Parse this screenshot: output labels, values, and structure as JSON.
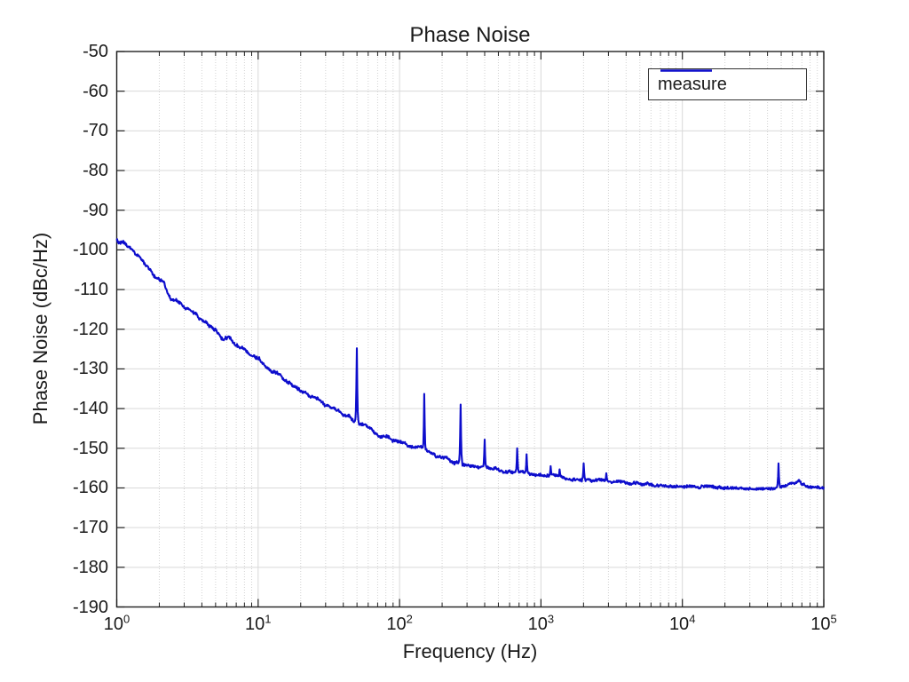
{
  "figure": {
    "background": "#ffffff",
    "text_color": "#1a1a1a"
  },
  "chart_data": {
    "type": "line",
    "title": "Phase Noise",
    "xlabel": "Frequency (Hz)",
    "ylabel": "Phase Noise (dBc/Hz)",
    "x_scale": "log",
    "xlim": [
      1,
      100000
    ],
    "ylim": [
      -190,
      -50
    ],
    "y_ticks": [
      -190,
      -180,
      -170,
      -160,
      -150,
      -140,
      -130,
      -120,
      -110,
      -100,
      -90,
      -80,
      -70,
      -60,
      -50
    ],
    "x_tick_base": "10",
    "x_tick_exponents": [
      0,
      1,
      2,
      3,
      4,
      5
    ],
    "grid": true,
    "minor_grid": true,
    "colors": {
      "grid_major": "#d9d9d9",
      "grid_minor": "#d2d2d2",
      "axis": "#212121",
      "line": "#0d0dcc"
    },
    "legend": {
      "position": "northeast",
      "entries": [
        {
          "label": "measure",
          "color": "#0d0dcc"
        }
      ]
    },
    "series": [
      {
        "name": "measure",
        "color": "#0d0dcc",
        "baseline_points": [
          [
            1,
            -97.5
          ],
          [
            1.1,
            -98.3
          ],
          [
            1.3,
            -100.5
          ],
          [
            1.5,
            -102.5
          ],
          [
            1.7,
            -105
          ],
          [
            1.85,
            -106.8
          ],
          [
            2,
            -107.3
          ],
          [
            2.15,
            -107.8
          ],
          [
            2.3,
            -110.5
          ],
          [
            2.45,
            -112.3
          ],
          [
            2.6,
            -112.8
          ],
          [
            2.8,
            -113.4
          ],
          [
            3,
            -114.6
          ],
          [
            3.3,
            -115.6
          ],
          [
            3.6,
            -116.2
          ],
          [
            3.9,
            -117.6
          ],
          [
            4.2,
            -118.2
          ],
          [
            4.6,
            -119.4
          ],
          [
            5,
            -120.6
          ],
          [
            5.5,
            -122.3
          ],
          [
            5.8,
            -122
          ],
          [
            6.2,
            -121.6
          ],
          [
            6.6,
            -122.8
          ],
          [
            7,
            -124.3
          ],
          [
            7.5,
            -125.2
          ],
          [
            8,
            -125.8
          ],
          [
            9,
            -126.3
          ],
          [
            10,
            -126.9
          ],
          [
            11,
            -128.2
          ],
          [
            12,
            -129.2
          ],
          [
            13.5,
            -130.5
          ],
          [
            15,
            -131.6
          ],
          [
            17,
            -133
          ],
          [
            20,
            -134.8
          ],
          [
            23,
            -136.4
          ],
          [
            26,
            -137.6
          ],
          [
            30,
            -139.2
          ],
          [
            35,
            -140.8
          ],
          [
            40,
            -141.9
          ],
          [
            45,
            -142.8
          ],
          [
            50,
            -143.4
          ],
          [
            57,
            -144.4
          ],
          [
            65,
            -145.2
          ],
          [
            75,
            -146.2
          ],
          [
            85,
            -147.2
          ],
          [
            100,
            -148.6
          ],
          [
            115,
            -149.6
          ],
          [
            135,
            -150.6
          ],
          [
            160,
            -151.4
          ],
          [
            200,
            -152.4
          ],
          [
            250,
            -153.3
          ],
          [
            300,
            -154
          ],
          [
            370,
            -154.7
          ],
          [
            450,
            -155.2
          ],
          [
            550,
            -155.7
          ],
          [
            700,
            -156.2
          ],
          [
            850,
            -156.6
          ],
          [
            1000,
            -156.8
          ],
          [
            1300,
            -157.3
          ],
          [
            1700,
            -157.7
          ],
          [
            2200,
            -158
          ],
          [
            3000,
            -158.4
          ],
          [
            4000,
            -158.8
          ],
          [
            5500,
            -159.2
          ],
          [
            7500,
            -159.5
          ],
          [
            10000,
            -159.7
          ],
          [
            14000,
            -159.9
          ],
          [
            20000,
            -160
          ],
          [
            30000,
            -160.1
          ],
          [
            40000,
            -160.1
          ],
          [
            46000,
            -160
          ],
          [
            52000,
            -159.6
          ],
          [
            57000,
            -159
          ],
          [
            60000,
            -158.6
          ],
          [
            63000,
            -158.9
          ],
          [
            67000,
            -158.3
          ],
          [
            70000,
            -159.3
          ],
          [
            80000,
            -159.9
          ],
          [
            100000,
            -160
          ]
        ],
        "spikes": [
          [
            50,
            -124.8
          ],
          [
            150,
            -136.3
          ],
          [
            270,
            -139
          ],
          [
            400,
            -147.8
          ],
          [
            680,
            -150
          ],
          [
            790,
            -151.5
          ],
          [
            1170,
            -154.5
          ],
          [
            1360,
            -155.3
          ],
          [
            2000,
            -153.8
          ],
          [
            2900,
            -156.3
          ],
          [
            48000,
            -153.8
          ]
        ]
      }
    ]
  }
}
